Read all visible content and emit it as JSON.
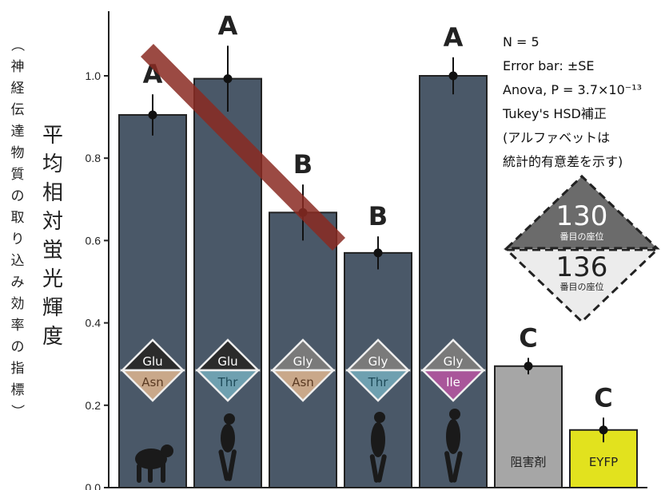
{
  "chart_data": {
    "type": "bar",
    "ylabel_main": "平均相対蛍光輝度",
    "ylabel_sub": "（神経伝達物質の取り込み効率の指標）",
    "ylim": [
      0,
      1.15
    ],
    "yticks": [
      "0.0",
      "0.2",
      "0.4",
      "0.6",
      "0.8",
      "1.0"
    ],
    "ytick_values": [
      0.0,
      0.2,
      0.4,
      0.6,
      0.8,
      1.0
    ],
    "bars": [
      {
        "value": 0.905,
        "err": 0.05,
        "group": "A",
        "pos130": "Glu",
        "pos136": "Asn",
        "color": "#4a5868",
        "c136": "#c9a88a",
        "t136": "#5a3a22",
        "silhouette": "chimp-icon"
      },
      {
        "value": 0.993,
        "err": 0.08,
        "group": "A",
        "pos130": "Glu",
        "pos136": "Thr",
        "color": "#4a5868",
        "c136": "#6fa0b0",
        "t136": "#1e4a58",
        "silhouette": "ancient-hominin-icon"
      },
      {
        "value": 0.668,
        "err": 0.068,
        "group": "B",
        "pos130": "Gly",
        "pos136": "Asn",
        "color": "#4a5868",
        "c136": "#c9a88a",
        "t136": "#5a3a22",
        "silhouette": ""
      },
      {
        "value": 0.57,
        "err": 0.04,
        "group": "B",
        "pos130": "Gly",
        "pos136": "Thr",
        "color": "#4a5868",
        "c136": "#6fa0b0",
        "t136": "#1e4a58",
        "silhouette": "hominin-icon"
      },
      {
        "value": 1.0,
        "err": 0.045,
        "group": "A",
        "pos130": "Gly",
        "pos136": "Ile",
        "color": "#4a5868",
        "c136": "#a9569a",
        "t136": "#ffffff",
        "silhouette": "human-icon"
      },
      {
        "value": 0.295,
        "err": 0.02,
        "group": "C",
        "label": "阻害剤",
        "color": "#a6a6a6",
        "label_color": "#222222"
      },
      {
        "value": 0.14,
        "err": 0.03,
        "group": "C",
        "label": "EYFP",
        "color": "#e2e21e",
        "label_color": "#222222"
      }
    ],
    "annotations": [
      "N = 5",
      "Error bar: ±SE",
      "Anova, P = 3.7×10⁻¹³",
      "Tukey's HSD補正",
      "(アルファベットは",
      "統計的有意差を示す)"
    ],
    "legend": {
      "top_number": "130",
      "top_caption": "番目の座位",
      "bottom_number": "136",
      "bottom_caption": "番目の座位"
    },
    "colors": {
      "bar_main": "#4a5868",
      "pos130_dark": "#2b2b2b",
      "pos130_light": "#7a7a7a",
      "slash": "#8a2a22"
    }
  }
}
